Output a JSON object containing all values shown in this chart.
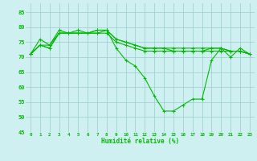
{
  "xlabel": "Humidité relative (%)",
  "xlim_left": -0.5,
  "xlim_right": 23.5,
  "ylim": [
    45,
    88
  ],
  "yticks": [
    45,
    50,
    55,
    60,
    65,
    70,
    75,
    80,
    85
  ],
  "xticks": [
    0,
    1,
    2,
    3,
    4,
    5,
    6,
    7,
    8,
    9,
    10,
    11,
    12,
    13,
    14,
    15,
    16,
    17,
    18,
    19,
    20,
    21,
    22,
    23
  ],
  "background_color": "#cff0f0",
  "grid_color": "#99cccc",
  "line_color": "#00bb00",
  "lines": [
    [
      71,
      76,
      74,
      79,
      78,
      79,
      78,
      79,
      79,
      73,
      69,
      67,
      63,
      57,
      52,
      52,
      54,
      56,
      56,
      69,
      73,
      70,
      73,
      71
    ],
    [
      71,
      74,
      74,
      78,
      78,
      78,
      78,
      79,
      79,
      76,
      75,
      74,
      73,
      73,
      73,
      73,
      73,
      73,
      73,
      73,
      73,
      72,
      72,
      71
    ],
    [
      71,
      74,
      73,
      78,
      78,
      78,
      78,
      78,
      79,
      76,
      75,
      74,
      73,
      73,
      73,
      72,
      72,
      72,
      72,
      73,
      73,
      72,
      72,
      71
    ],
    [
      71,
      74,
      73,
      78,
      78,
      78,
      78,
      78,
      78,
      75,
      74,
      73,
      72,
      72,
      72,
      72,
      72,
      72,
      72,
      72,
      72,
      72,
      72,
      71
    ]
  ]
}
